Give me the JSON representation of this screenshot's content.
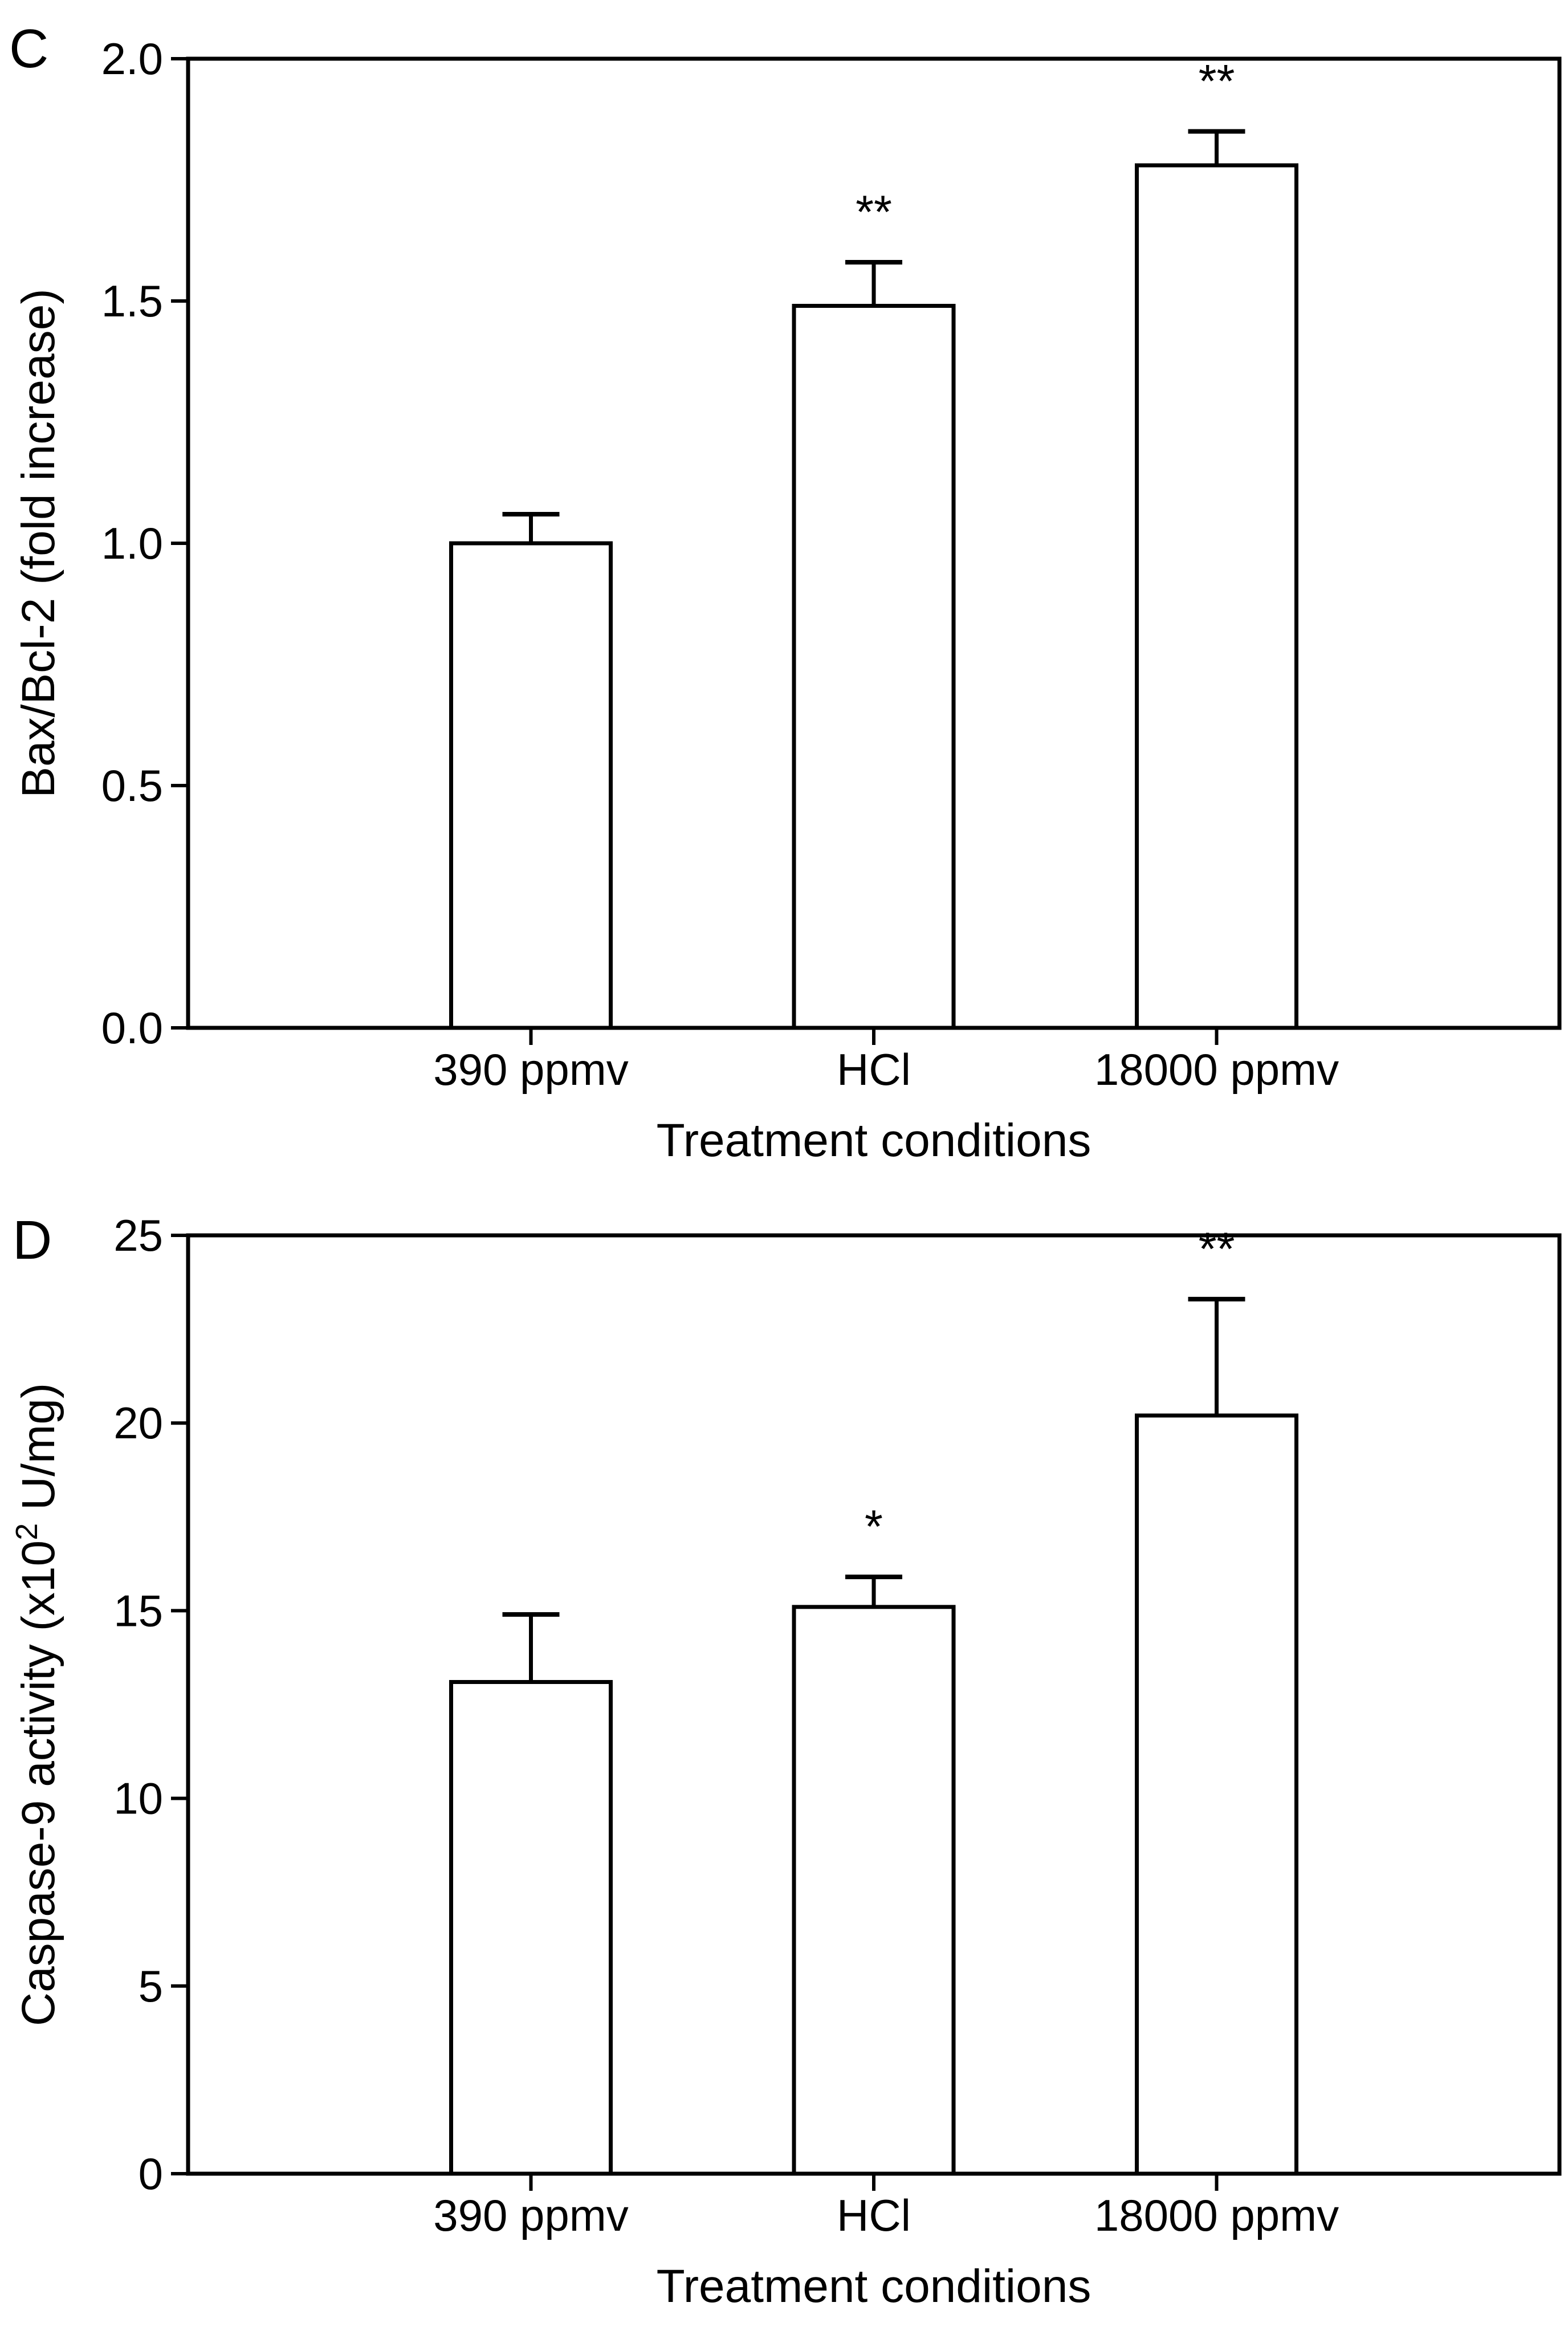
{
  "figure": {
    "background": "#ffffff",
    "ink_color": "#000000",
    "bar_fill": "#ffffff"
  },
  "chart_data": [
    {
      "type": "bar",
      "panel_label": "C",
      "title": "",
      "categories": [
        "390 ppmv",
        "HCl",
        "18000 ppmv"
      ],
      "values": [
        1.0,
        1.49,
        1.78
      ],
      "errors_plus": [
        0.06,
        0.09,
        0.07
      ],
      "significance": [
        "",
        "**",
        "**"
      ],
      "xlabel": "Treatment conditions",
      "ylabel": "Bax/Bcl-2 (fold increase)",
      "ylabel_rich": [
        {
          "text": "Bax/Bcl-2 (fold increase)",
          "sup": false
        }
      ],
      "ylim": [
        0,
        2
      ],
      "ytick_step": 0.5,
      "ytick_labels": [
        "0.0",
        "0.5",
        "1.0",
        "1.5",
        "2.0"
      ],
      "grid": false,
      "legend": null,
      "bar_fill": "#ffffff",
      "edge_color": "#000000"
    },
    {
      "type": "bar",
      "panel_label": "D",
      "title": "",
      "categories": [
        "390 ppmv",
        "HCl",
        "18000 ppmv"
      ],
      "values": [
        13.1,
        15.1,
        20.2
      ],
      "errors_plus": [
        1.8,
        0.8,
        3.1
      ],
      "significance": [
        "",
        "*",
        "**"
      ],
      "xlabel": "Treatment conditions",
      "ylabel": "Caspase-9 activity (x10² U/mg)",
      "ylabel_rich": [
        {
          "text": "Caspase-9 activity (x10",
          "sup": false
        },
        {
          "text": "2",
          "sup": true
        },
        {
          "text": " U/mg)",
          "sup": false
        }
      ],
      "ylim": [
        0,
        25
      ],
      "ytick_step": 5,
      "ytick_labels": [
        "0",
        "5",
        "10",
        "15",
        "20",
        "25"
      ],
      "grid": false,
      "legend": null,
      "bar_fill": "#ffffff",
      "edge_color": "#000000"
    }
  ]
}
